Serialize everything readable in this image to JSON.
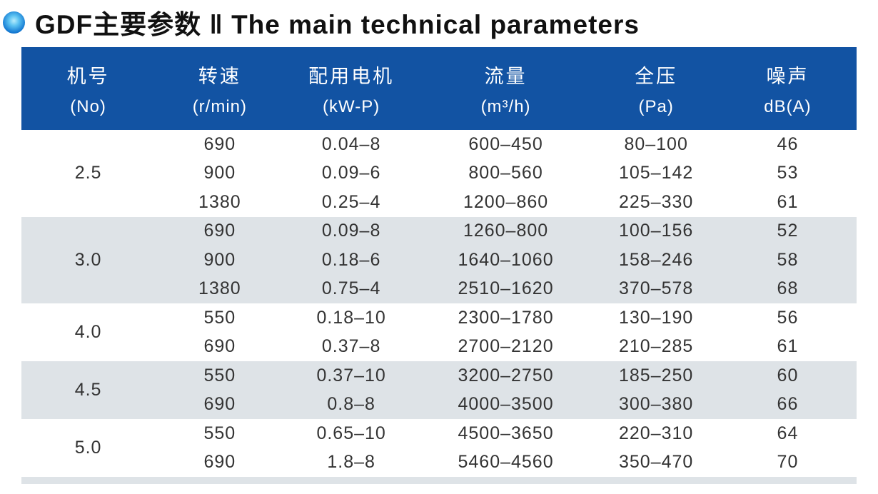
{
  "title": {
    "text": "GDF主要参数 ‖ The main technical parameters"
  },
  "colors": {
    "header_bg": "#1253a3",
    "band_bg": "#dee3e7",
    "body_text": "#333333",
    "header_text": "#ffffff"
  },
  "table": {
    "columns": [
      {
        "zh": "机号",
        "sub": "(No)"
      },
      {
        "zh": "转速",
        "sub": "(r/min)"
      },
      {
        "zh": "配用电机",
        "sub": "(kW-P)"
      },
      {
        "zh": "流量",
        "sub": "(m³/h)"
      },
      {
        "zh": "全压",
        "sub": "(Pa)"
      },
      {
        "zh": "噪声",
        "sub": "dB(A)"
      }
    ],
    "groups": [
      {
        "no": "2.5",
        "shaded": false,
        "rows": [
          {
            "speed": "690",
            "motor": "0.04–8",
            "flow": "600–450",
            "pressure": "80–100",
            "noise": "46"
          },
          {
            "speed": "900",
            "motor": "0.09–6",
            "flow": "800–560",
            "pressure": "105–142",
            "noise": "53"
          },
          {
            "speed": "1380",
            "motor": "0.25–4",
            "flow": "1200–860",
            "pressure": "225–330",
            "noise": "61"
          }
        ]
      },
      {
        "no": "3.0",
        "shaded": true,
        "rows": [
          {
            "speed": "690",
            "motor": "0.09–8",
            "flow": "1260–800",
            "pressure": "100–156",
            "noise": "52"
          },
          {
            "speed": "900",
            "motor": "0.18–6",
            "flow": "1640–1060",
            "pressure": "158–246",
            "noise": "58"
          },
          {
            "speed": "1380",
            "motor": "0.75–4",
            "flow": "2510–1620",
            "pressure": "370–578",
            "noise": "68"
          }
        ]
      },
      {
        "no": "4.0",
        "shaded": false,
        "rows": [
          {
            "speed": "550",
            "motor": "0.18–10",
            "flow": "2300–1780",
            "pressure": "130–190",
            "noise": "56"
          },
          {
            "speed": "690",
            "motor": "0.37–8",
            "flow": "2700–2120",
            "pressure": "210–285",
            "noise": "61"
          }
        ]
      },
      {
        "no": "4.5",
        "shaded": true,
        "rows": [
          {
            "speed": "550",
            "motor": "0.37–10",
            "flow": "3200–2750",
            "pressure": "185–250",
            "noise": "60"
          },
          {
            "speed": "690",
            "motor": "0.8–8",
            "flow": "4000–3500",
            "pressure": "300–380",
            "noise": "66"
          }
        ]
      },
      {
        "no": "5.0",
        "shaded": false,
        "rows": [
          {
            "speed": "550",
            "motor": "0.65–10",
            "flow": "4500–3650",
            "pressure": "220–310",
            "noise": "64"
          },
          {
            "speed": "690",
            "motor": "1.8–8",
            "flow": "5460–4560",
            "pressure": "350–470",
            "noise": "70"
          }
        ]
      }
    ]
  }
}
